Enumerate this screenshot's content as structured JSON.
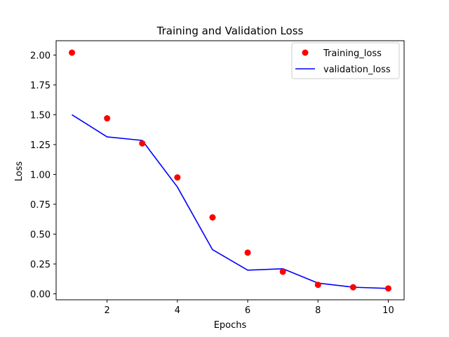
{
  "chart_data": {
    "type": "line",
    "title": "Training and Validation Loss",
    "xlabel": "Epochs",
    "ylabel": "Loss",
    "xlim": [
      0.55,
      10.45
    ],
    "ylim": [
      -0.05,
      2.12
    ],
    "xticks": [
      2,
      4,
      6,
      8,
      10
    ],
    "yticks": [
      0.0,
      0.25,
      0.5,
      0.75,
      1.0,
      1.25,
      1.5,
      1.75,
      2.0
    ],
    "xtick_labels": [
      "2",
      "4",
      "6",
      "8",
      "10"
    ],
    "ytick_labels": [
      "0.00",
      "0.25",
      "0.50",
      "0.75",
      "1.00",
      "1.25",
      "1.50",
      "1.75",
      "2.00"
    ],
    "legend_position": "top-right",
    "series": [
      {
        "name": "Training_loss",
        "style": "markers",
        "color": "#ff0000",
        "x": [
          1,
          2,
          3,
          4,
          5,
          6,
          7,
          8,
          9,
          10
        ],
        "values": [
          2.02,
          1.47,
          1.26,
          0.975,
          0.64,
          0.345,
          0.185,
          0.075,
          0.055,
          0.045
        ]
      },
      {
        "name": "validation_loss",
        "style": "line",
        "color": "#0000ff",
        "x": [
          1,
          2,
          3,
          4,
          5,
          6,
          7,
          8,
          9,
          10
        ],
        "values": [
          1.5,
          1.315,
          1.285,
          0.895,
          0.37,
          0.198,
          0.21,
          0.09,
          0.055,
          0.045
        ]
      }
    ]
  }
}
